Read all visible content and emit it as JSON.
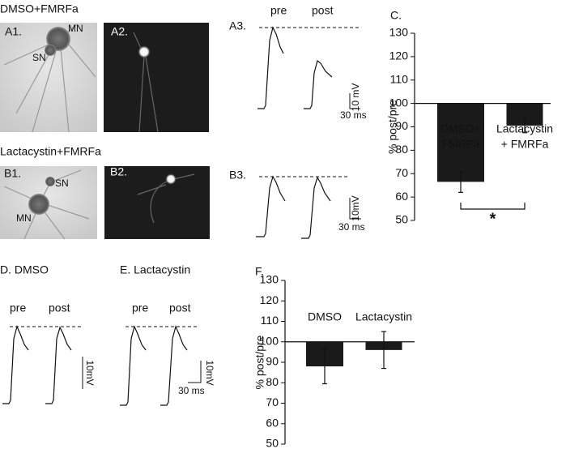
{
  "panels": {
    "a_title": "DMSO+FMRFa",
    "a1": "A1.",
    "a1_mn": "MN",
    "a1_sn": "SN",
    "a2": "A2.",
    "a3": "A3.",
    "a3_pre": "pre",
    "a3_post": "post",
    "a3_scale_v": "10 mV",
    "a3_scale_t": "30 ms",
    "b_title": "Lactacystin+FMRFa",
    "b1": "B1.",
    "b1_sn": "SN",
    "b1_mn": "MN",
    "b2": "B2.",
    "b3": "B3.",
    "b3_scale_v": "10mV",
    "b3_scale_t": "30 ms",
    "d_title": "D. DMSO",
    "d_pre": "pre",
    "d_post": "post",
    "e_title": "E. Lactacystin",
    "e_pre": "pre",
    "e_post": "post",
    "e_scale_v": "10mV",
    "e_scale_t": "30 ms"
  },
  "chart_data": [
    {
      "type": "bar",
      "panel_label": "C.",
      "ylabel": "% post/pre",
      "categories": [
        [
          "DMSO+",
          "FMRFa"
        ],
        [
          "Lactacystin",
          "+ FMRFa"
        ]
      ],
      "values": [
        66.5,
        90.5
      ],
      "errors": [
        4.5,
        3
      ],
      "baseline": 100,
      "color": "#1a1a1a",
      "ylim": [
        50,
        130
      ],
      "yticks": [
        50,
        60,
        70,
        80,
        90,
        100,
        110,
        120,
        130
      ],
      "significance": "*"
    },
    {
      "type": "bar",
      "panel_label": "F.",
      "ylabel": "% post/pre",
      "categories": [
        [
          "DMSO"
        ],
        [
          "Lactacystin"
        ]
      ],
      "values": [
        88,
        96
      ],
      "errors": [
        8.5,
        9
      ],
      "baseline": 100,
      "color": "#1a1a1a",
      "ylim": [
        50,
        130
      ],
      "yticks": [
        50,
        60,
        70,
        80,
        90,
        100,
        110,
        120,
        130
      ]
    }
  ]
}
